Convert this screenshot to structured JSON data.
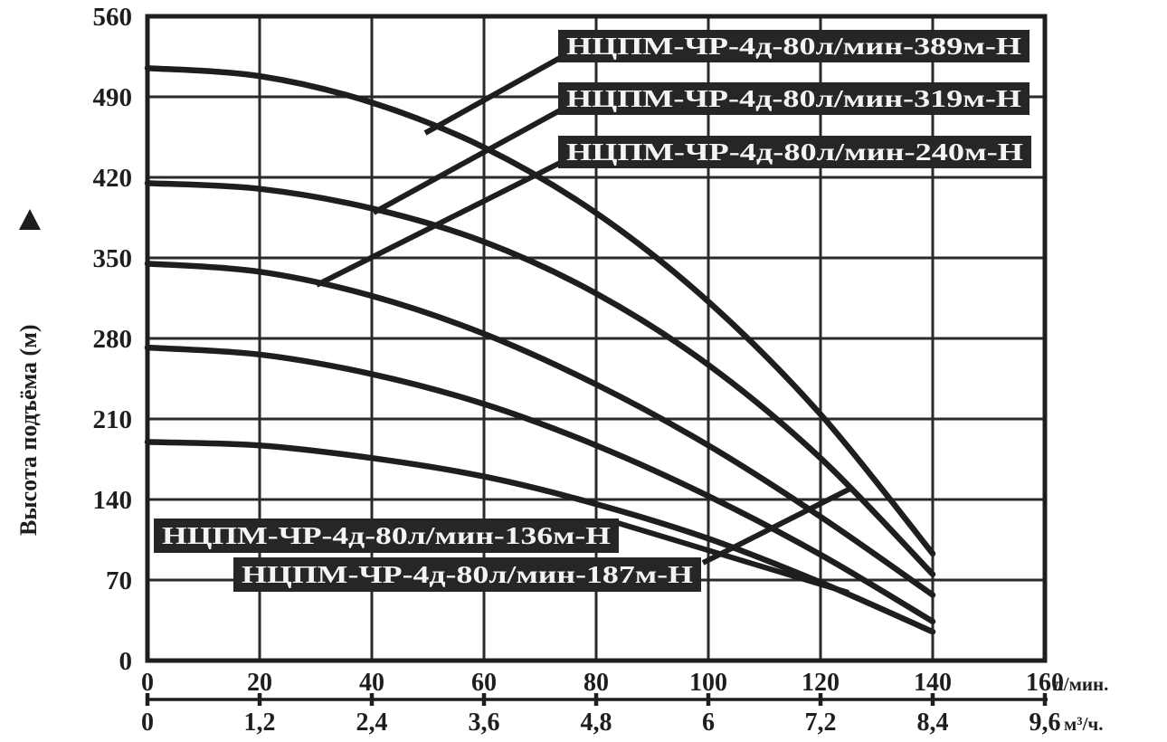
{
  "colors": {
    "ink": "#1e1e1c",
    "grid": "#2a2a28",
    "label_bg": "#262624",
    "label_text": "#f4f4f2",
    "background": "#ffffff"
  },
  "y_axis": {
    "title": "Высота подъёма (м)",
    "arrow_icon": "up-triangle",
    "ticks": [
      "0",
      "70",
      "140",
      "210",
      "280",
      "350",
      "420",
      "490",
      "560"
    ]
  },
  "x_axis_primary": {
    "ticks": [
      "0",
      "20",
      "40",
      "60",
      "80",
      "100",
      "120",
      "140",
      "160"
    ],
    "unit": "л/мин."
  },
  "x_axis_secondary": {
    "ticks": [
      "0",
      "1,2",
      "2,4",
      "3,6",
      "4,8",
      "6",
      "7,2",
      "8,4",
      "9,6"
    ],
    "unit": "м³/ч."
  },
  "chart_data": {
    "type": "line",
    "title": "",
    "xlabel_primary": "л/мин.",
    "xlabel_secondary": "м³/ч.",
    "ylabel": "Высота подъёма (м)",
    "xlim": [
      0,
      160
    ],
    "ylim": [
      0,
      560
    ],
    "x_step": 20,
    "y_step": 70,
    "grid": true,
    "legend_position": "callout-boxes",
    "x": [
      0,
      20,
      40,
      60,
      80,
      100,
      120,
      140
    ],
    "x_secondary_ticks": [
      "0",
      "1,2",
      "2,4",
      "3,6",
      "4,8",
      "6",
      "7,2",
      "8,4",
      "9,6"
    ],
    "series": [
      {
        "name": "НЦПМ-ЧР-4д-80л/мин-389м-Н",
        "values": [
          515,
          508,
          485,
          446,
          389,
          312,
          214,
          93
        ]
      },
      {
        "name": "НЦПМ-ЧР-4д-80л/мин-319м-Н",
        "values": [
          415,
          410,
          393,
          364,
          319,
          257,
          176,
          75
        ]
      },
      {
        "name": "НЦПМ-ЧР-4д-80л/мин-240м-Н",
        "values": [
          345,
          338,
          317,
          284,
          240,
          187,
          125,
          57
        ]
      },
      {
        "name": "НЦПМ-ЧР-4д-80л/мин-187м-Н",
        "values": [
          272,
          266,
          249,
          223,
          187,
          143,
          92,
          34
        ]
      },
      {
        "name": "НЦПМ-ЧР-4д-80л/мин-136м-Н",
        "values": [
          190,
          187,
          176,
          160,
          136,
          106,
          68,
          25
        ]
      }
    ]
  }
}
